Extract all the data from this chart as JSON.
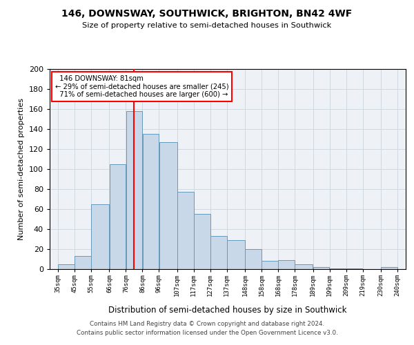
{
  "title1": "146, DOWNSWAY, SOUTHWICK, BRIGHTON, BN42 4WF",
  "title2": "Size of property relative to semi-detached houses in Southwick",
  "xlabel": "Distribution of semi-detached houses by size in Southwick",
  "ylabel": "Number of semi-detached properties",
  "property_label": "146 DOWNSWAY: 81sqm",
  "pct_smaller": 29,
  "count_smaller": 245,
  "pct_larger": 71,
  "count_larger": 600,
  "bar_left_edges": [
    35,
    45,
    55,
    66,
    76,
    86,
    96,
    107,
    117,
    127,
    137,
    148,
    158,
    168,
    178,
    189,
    199,
    209,
    219,
    230
  ],
  "bar_widths": [
    10,
    10,
    11,
    10,
    10,
    10,
    11,
    10,
    10,
    10,
    11,
    10,
    10,
    10,
    11,
    10,
    10,
    10,
    11,
    10
  ],
  "bar_heights": [
    5,
    13,
    65,
    105,
    158,
    135,
    127,
    77,
    55,
    33,
    29,
    20,
    8,
    9,
    5,
    2,
    1,
    1,
    0,
    2
  ],
  "tick_labels": [
    "35sqm",
    "45sqm",
    "55sqm",
    "66sqm",
    "76sqm",
    "86sqm",
    "96sqm",
    "107sqm",
    "117sqm",
    "127sqm",
    "137sqm",
    "148sqm",
    "158sqm",
    "168sqm",
    "178sqm",
    "189sqm",
    "199sqm",
    "209sqm",
    "219sqm",
    "230sqm",
    "240sqm"
  ],
  "bar_color": "#c8d8e8",
  "bar_edge_color": "#6699bb",
  "vline_x": 81,
  "vline_color": "red",
  "ylim": [
    0,
    200
  ],
  "yticks": [
    0,
    20,
    40,
    60,
    80,
    100,
    120,
    140,
    160,
    180,
    200
  ],
  "grid_color": "#d0d8e0",
  "bg_color": "#eef2f6",
  "footer1": "Contains HM Land Registry data © Crown copyright and database right 2024.",
  "footer2": "Contains public sector information licensed under the Open Government Licence v3.0."
}
